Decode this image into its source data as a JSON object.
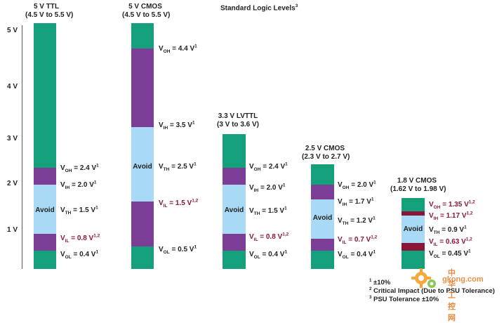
{
  "title": "Standard Logic Levels",
  "title_sup": "3",
  "y_ticks": [
    "5 V",
    "4 V",
    "3 V",
    "2 V",
    "1 V"
  ],
  "colors": {
    "green": "#13a07b",
    "purple": "#7b3d96",
    "blue": "#a8daf5",
    "red": "#8a1538"
  },
  "columns": [
    {
      "name": "5 V TTL",
      "range": "(4.5 V to 5.5 V)",
      "avoid": "Avoid",
      "labels": [
        {
          "key": "V",
          "sub": "OH",
          "val": "= 2.4 V",
          "sup": "1",
          "critical": false
        },
        {
          "key": "V",
          "sub": "IH",
          "val": "= 2.0 V",
          "sup": "1",
          "critical": false
        },
        {
          "key": "V",
          "sub": "TH",
          "val": "= 1.5 V",
          "sup": "1",
          "critical": false
        },
        {
          "key": "V",
          "sub": "IL",
          "val": "= 0.8 V",
          "sup": "1,2",
          "critical": true
        },
        {
          "key": "V",
          "sub": "OL",
          "val": "= 0.4 V",
          "sup": "1",
          "critical": false
        }
      ]
    },
    {
      "name": "5 V CMOS",
      "range": "(4.5 V to 5.5 V)",
      "avoid": "Avoid",
      "labels": [
        {
          "key": "V",
          "sub": "OH",
          "val": "= 4.4 V",
          "sup": "1",
          "critical": false
        },
        {
          "key": "V",
          "sub": "IH",
          "val": "= 3.5 V",
          "sup": "1",
          "critical": false
        },
        {
          "key": "V",
          "sub": "TH",
          "val": "= 2.5 V",
          "sup": "1",
          "critical": false
        },
        {
          "key": "V",
          "sub": "IL",
          "val": "= 1.5 V",
          "sup": "1,2",
          "critical": true
        },
        {
          "key": "V",
          "sub": "OL",
          "val": "= 0.5 V",
          "sup": "1",
          "critical": false
        }
      ]
    },
    {
      "name": "3.3 V LVTTL",
      "range": "(3 V to 3.6 V)",
      "avoid": "Avoid",
      "labels": [
        {
          "key": "V",
          "sub": "OH",
          "val": "= 2.4 V",
          "sup": "1",
          "critical": false
        },
        {
          "key": "V",
          "sub": "IH",
          "val": "= 2.0 V",
          "sup": "1",
          "critical": false
        },
        {
          "key": "V",
          "sub": "TH",
          "val": "= 1.5 V",
          "sup": "1",
          "critical": false
        },
        {
          "key": "V",
          "sub": "IL",
          "val": "= 0.8 V",
          "sup": "1,2",
          "critical": true
        },
        {
          "key": "V",
          "sub": "OL",
          "val": "= 0.4 V",
          "sup": "1",
          "critical": false
        }
      ]
    },
    {
      "name": "2.5 V CMOS",
      "range": "(2.3 V to 2.7 V)",
      "avoid": "Avoid",
      "labels": [
        {
          "key": "V",
          "sub": "OH",
          "val": "= 2.0 V",
          "sup": "1",
          "critical": false
        },
        {
          "key": "V",
          "sub": "IH",
          "val": "= 1.7 V",
          "sup": "1",
          "critical": false
        },
        {
          "key": "V",
          "sub": "TH",
          "val": "= 1.2 V",
          "sup": "1",
          "critical": false
        },
        {
          "key": "V",
          "sub": "IL",
          "val": "= 0.7 V",
          "sup": "1,2",
          "critical": true
        },
        {
          "key": "V",
          "sub": "OL",
          "val": "= 0.4 V",
          "sup": "1",
          "critical": false
        }
      ]
    },
    {
      "name": "1.8 V CMOS",
      "range": "(1.62 V to 1.98 V)",
      "avoid": "Avoid",
      "labels": [
        {
          "key": "V",
          "sub": "OH",
          "val": "= 1.35 V",
          "sup": "1,2",
          "critical": true
        },
        {
          "key": "V",
          "sub": "IH",
          "val": "= 1.17 V",
          "sup": "1,2",
          "critical": true
        },
        {
          "key": "V",
          "sub": "TH",
          "val": "= 0.9 V",
          "sup": "1",
          "critical": false
        },
        {
          "key": "V",
          "sub": "IL",
          "val": "= 0.63 V",
          "sup": "1,2",
          "critical": true
        },
        {
          "key": "V",
          "sub": "OL",
          "val": "= 0.45 V",
          "sup": "1",
          "critical": false
        }
      ]
    }
  ],
  "footnotes": [
    {
      "sup": "1",
      "text": "±10%"
    },
    {
      "sup": "2",
      "text": "Critical Impact (Due to PSU Tolerance)"
    },
    {
      "sup": "3",
      "text": "PSU Tolerance ±10%"
    }
  ],
  "watermark": {
    "line1": "中华工控网",
    "line2": "gkong.com"
  }
}
